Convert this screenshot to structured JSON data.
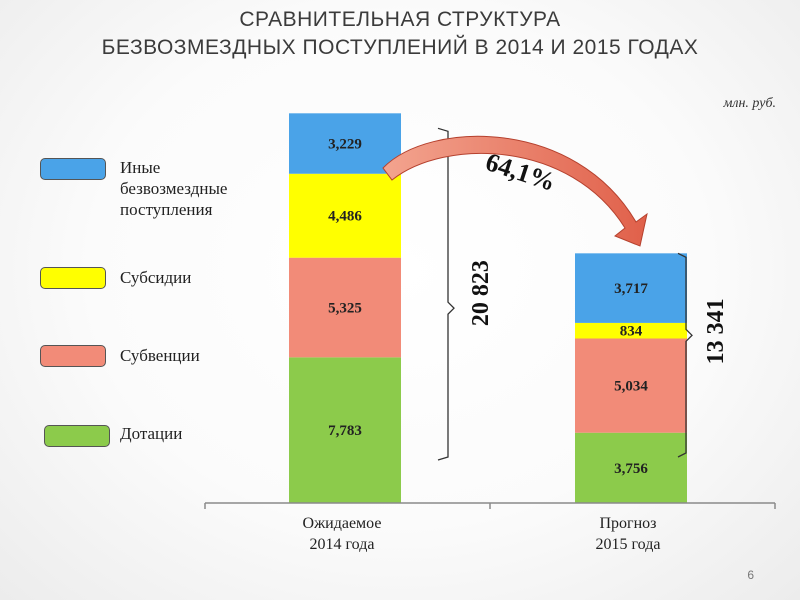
{
  "title": {
    "line1": "СРАВНИТЕЛЬНАЯ СТРУКТУРА",
    "line2": "БЕЗВОЗМЕЗДНЫХ ПОСТУПЛЕНИЙ В 2014 И 2015 ГОДАХ"
  },
  "units": "млн. руб.",
  "page_number": "6",
  "legend": [
    {
      "label": "Иные безвозмездные поступления",
      "color": "#4aa3e8"
    },
    {
      "label": "Субсидии",
      "color": "#ffff00"
    },
    {
      "label": "Субвенции",
      "color": "#f28b78"
    },
    {
      "label": "Дотации",
      "color": "#8ccb4b"
    }
  ],
  "chart_data": {
    "type": "bar",
    "stacked": true,
    "categories": [
      "Ожидаемое 2014 года",
      "Прогноз 2015 года"
    ],
    "series": [
      {
        "name": "Дотации",
        "color": "#8ccb4b",
        "values": [
          7783,
          3756
        ],
        "labels": [
          "7,783",
          "3,756"
        ]
      },
      {
        "name": "Субвенции",
        "color": "#f28b78",
        "values": [
          5325,
          5034
        ],
        "labels": [
          "5,325",
          "5,034"
        ]
      },
      {
        "name": "Субсидии",
        "color": "#ffff00",
        "values": [
          4486,
          834
        ],
        "labels": [
          "4,486",
          "834"
        ]
      },
      {
        "name": "Иные безвозмездные поступления",
        "color": "#4aa3e8",
        "values": [
          3229,
          3717
        ],
        "labels": [
          "3,229",
          "3,717"
        ]
      }
    ],
    "totals": [
      "20 823",
      "13 341"
    ],
    "change_label": "64,1%",
    "ylim": [
      0,
      21000
    ],
    "grid": false,
    "legend_position": "left"
  }
}
